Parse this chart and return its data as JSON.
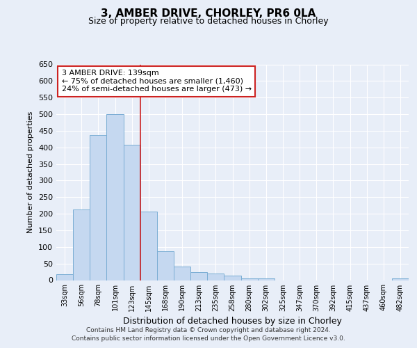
{
  "title_line1": "3, AMBER DRIVE, CHORLEY, PR6 0LA",
  "title_line2": "Size of property relative to detached houses in Chorley",
  "xlabel": "Distribution of detached houses by size in Chorley",
  "ylabel": "Number of detached properties",
  "footer_line1": "Contains HM Land Registry data © Crown copyright and database right 2024.",
  "footer_line2": "Contains public sector information licensed under the Open Government Licence v3.0.",
  "categories": [
    "33sqm",
    "56sqm",
    "78sqm",
    "101sqm",
    "123sqm",
    "145sqm",
    "168sqm",
    "190sqm",
    "213sqm",
    "235sqm",
    "258sqm",
    "280sqm",
    "302sqm",
    "325sqm",
    "347sqm",
    "370sqm",
    "392sqm",
    "415sqm",
    "437sqm",
    "460sqm",
    "482sqm"
  ],
  "values": [
    18,
    213,
    437,
    500,
    408,
    207,
    87,
    40,
    24,
    20,
    13,
    5,
    5,
    0,
    0,
    0,
    0,
    0,
    0,
    0,
    5
  ],
  "bar_color": "#c5d8f0",
  "bar_edge_color": "#7aadd4",
  "background_color": "#e8eef8",
  "grid_color": "#ffffff",
  "vline_x": 4.5,
  "vline_color": "#cc2222",
  "annotation_text": "3 AMBER DRIVE: 139sqm\n← 75% of detached houses are smaller (1,460)\n24% of semi-detached houses are larger (473) →",
  "annotation_box_color": "#ffffff",
  "annotation_box_edge": "#cc2222",
  "ylim": [
    0,
    650
  ],
  "yticks": [
    0,
    50,
    100,
    150,
    200,
    250,
    300,
    350,
    400,
    450,
    500,
    550,
    600,
    650
  ]
}
